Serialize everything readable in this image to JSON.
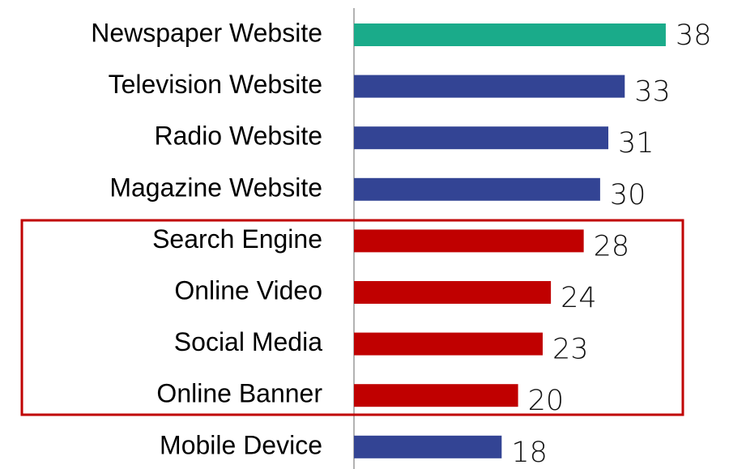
{
  "chart_data": {
    "type": "bar",
    "categories": [
      "Newspaper Website",
      "Television Website",
      "Radio Website",
      "Magazine Website",
      "Search Engine",
      "Online Video",
      "Social Media",
      "Online Banner",
      "Mobile Device"
    ],
    "values": [
      38,
      33,
      31,
      30,
      28,
      24,
      23,
      20,
      18
    ],
    "colors": [
      "#1aab8a",
      "#334494",
      "#334494",
      "#334494",
      "#c00000",
      "#c00000",
      "#c00000",
      "#c00000",
      "#334494"
    ]
  }
}
